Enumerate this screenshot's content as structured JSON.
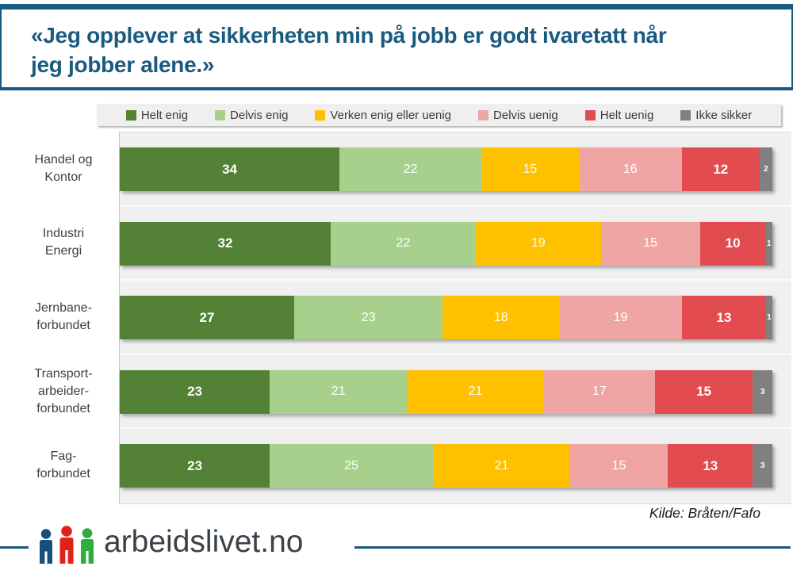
{
  "title": {
    "lines": [
      "«Jeg opplever at sikkerheten min på jobb er godt ivaretatt når",
      "jeg jobber alene.»"
    ]
  },
  "source": {
    "text": "Kilde: Bråten/Fafo"
  },
  "footer": {
    "brand": "arbeidslivet.no",
    "logo_icon": "three-people-icon"
  },
  "colors": {
    "accent_blue": "#1A5A80",
    "plot_background": "#F0F0F0",
    "legend_background": "#EFEFEF",
    "logo_blue": "#15507E",
    "logo_red": "#E32119",
    "logo_green": "#2EAE3C"
  },
  "chart_data": {
    "type": "bar",
    "subtype": "stacked-horizontal-percent",
    "title": "«Jeg opplever at sikkerheten min på jobb er godt ivaretatt når jeg jobber alene.»",
    "categories": [
      "Handel og Kontor",
      "Industri Energi",
      "Jernbane-forbundet",
      "Transport-arbeider-forbundet",
      "Fag-forbundet"
    ],
    "category_lines": [
      [
        "Handel og",
        "Kontor"
      ],
      [
        "Industri",
        "Energi"
      ],
      [
        "Jernbane-",
        "forbundet"
      ],
      [
        "Transport-",
        "arbeider-",
        "forbundet"
      ],
      [
        "Fag-",
        "forbundet"
      ]
    ],
    "series": [
      {
        "name": "Helt enig",
        "color": "#538135",
        "values": [
          34,
          32,
          27,
          23,
          23
        ]
      },
      {
        "name": "Delvis enig",
        "color": "#A8D08D",
        "values": [
          22,
          22,
          23,
          21,
          25
        ]
      },
      {
        "name": "Verken enig eller uenig",
        "color": "#FFC000",
        "values": [
          15,
          19,
          18,
          21,
          21
        ]
      },
      {
        "name": "Delvis uenig",
        "color": "#F0A5A5",
        "values": [
          16,
          15,
          19,
          17,
          15
        ]
      },
      {
        "name": "Helt uenig",
        "color": "#E24B4F",
        "values": [
          12,
          10,
          13,
          15,
          13
        ]
      },
      {
        "name": "Ikke sikker",
        "color": "#808080",
        "values": [
          2,
          1,
          1,
          3,
          3
        ]
      }
    ],
    "xlim": [
      0,
      100
    ],
    "legend_position": "top",
    "value_labels": "inside-white",
    "source": "Kilde: Bråten/Fafo"
  }
}
